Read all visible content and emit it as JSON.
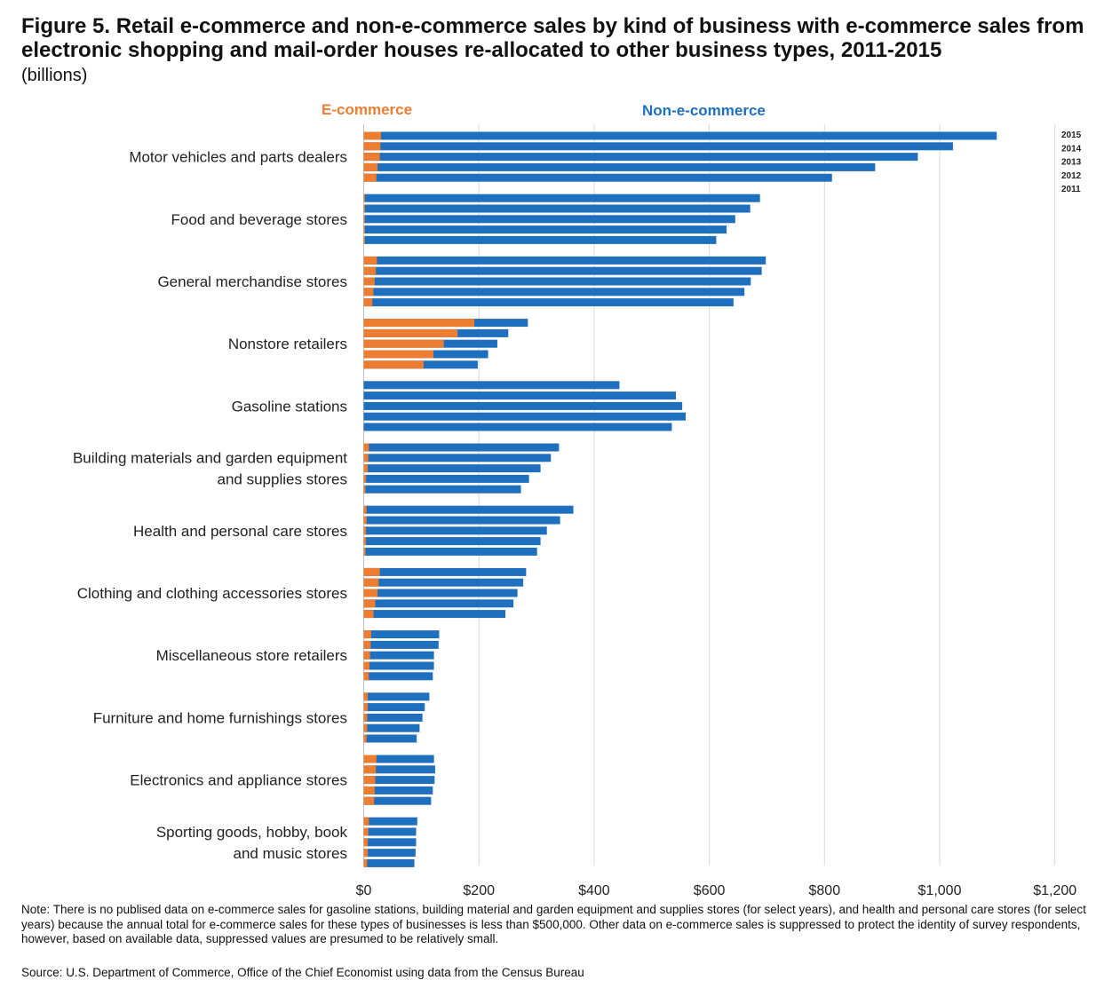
{
  "header": {
    "title": "Figure 5. Retail e-commerce and non-e-commerce sales by kind of business with e-commerce sales from electronic shopping and mail-order houses re-allocated to other business types, 2011-2015",
    "subtitle": "(billions)"
  },
  "legend": {
    "ecommerce": "E-commerce",
    "non_ecommerce": "Non-e-commerce"
  },
  "colors": {
    "ecommerce": "#ED7D31",
    "non_ecommerce": "#1F6FBF",
    "grid": "#D9D9D9"
  },
  "footer": {
    "note": "Note: There is no publised data on e-commerce sales for gasoline stations, building material and garden equipment and supplies stores (for select years), and health and personal care stores (for select years) because the annual total for e-commerce sales for these types of businesses is less than $500,000. Other data on e-commerce sales is suppressed to protect the identity of survey respondents, however, based on available data, suppressed values are presumed to be relatively small.",
    "source": "Source: U.S. Department of Commerce, Office of the Chief Economist using data from the Census Bureau"
  },
  "chart_data": {
    "type": "bar",
    "orientation": "horizontal",
    "stacked": true,
    "xlim": [
      0,
      1200
    ],
    "x_ticks": [
      "$0",
      "$200",
      "$400",
      "$600",
      "$800",
      "$1,000",
      "$1,200"
    ],
    "grid": "vertical",
    "years": [
      "2015",
      "2014",
      "2013",
      "2012",
      "2011"
    ],
    "categories": [
      {
        "label": [
          "Motor vehicles and parts dealers"
        ],
        "ecommerce": [
          30,
          29,
          28,
          24,
          22
        ],
        "total": [
          1099,
          1023,
          962,
          888,
          813
        ]
      },
      {
        "label": [
          "Food and beverage stores"
        ],
        "ecommerce": [
          2,
          2,
          2,
          2,
          2
        ],
        "total": [
          688,
          671,
          645,
          630,
          612
        ]
      },
      {
        "label": [
          "General merchandise stores"
        ],
        "ecommerce": [
          23,
          21,
          19,
          17,
          15
        ],
        "total": [
          698,
          691,
          672,
          661,
          642
        ]
      },
      {
        "label": [
          "Nonstore retailers"
        ],
        "ecommerce": [
          192,
          163,
          139,
          121,
          104
        ],
        "total": [
          285,
          251,
          232,
          216,
          198
        ]
      },
      {
        "label": [
          "Gasoline stations"
        ],
        "ecommerce": [
          0,
          0,
          0,
          0,
          0
        ],
        "total": [
          444,
          542,
          553,
          559,
          535
        ]
      },
      {
        "label": [
          "Building materials and garden equipment",
          "and supplies stores"
        ],
        "ecommerce": [
          9,
          8,
          7,
          4,
          3
        ],
        "total": [
          339,
          325,
          307,
          287,
          273
        ]
      },
      {
        "label": [
          "Health and personal care stores"
        ],
        "ecommerce": [
          5,
          5,
          4,
          4,
          3
        ],
        "total": [
          364,
          341,
          318,
          307,
          301
        ]
      },
      {
        "label": [
          "Clothing and clothing accessories stores"
        ],
        "ecommerce": [
          28,
          26,
          24,
          20,
          17
        ],
        "total": [
          282,
          277,
          267,
          260,
          246
        ]
      },
      {
        "label": [
          "Miscellaneous store retailers"
        ],
        "ecommerce": [
          13,
          12,
          11,
          10,
          9
        ],
        "total": [
          131,
          130,
          122,
          122,
          120
        ]
      },
      {
        "label": [
          "Furniture and home furnishings stores"
        ],
        "ecommerce": [
          7,
          7,
          6,
          6,
          5
        ],
        "total": [
          114,
          106,
          102,
          97,
          92
        ]
      },
      {
        "label": [
          "Electronics and appliance stores"
        ],
        "ecommerce": [
          22,
          21,
          20,
          19,
          18
        ],
        "total": [
          122,
          124,
          123,
          120,
          117
        ]
      },
      {
        "label": [
          "Sporting goods, hobby, book",
          "and music stores"
        ],
        "ecommerce": [
          9,
          8,
          7,
          7,
          6
        ],
        "total": [
          93,
          91,
          91,
          90,
          88
        ]
      }
    ]
  }
}
